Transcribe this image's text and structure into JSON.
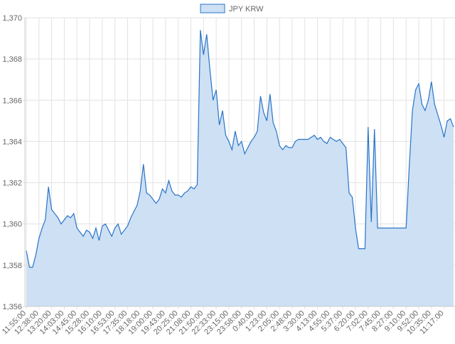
{
  "chart_data": {
    "type": "area",
    "series": [
      {
        "name": "JPY KRW",
        "color": "#2a74c9",
        "fill": "#cde0f4",
        "values": [
          1358.7,
          1357.9,
          1357.9,
          1358.5,
          1359.3,
          1359.8,
          1360.2,
          1361.8,
          1360.7,
          1360.5,
          1360.3,
          1360.0,
          1360.2,
          1360.4,
          1360.3,
          1360.5,
          1359.8,
          1359.6,
          1359.4,
          1359.7,
          1359.6,
          1359.3,
          1359.8,
          1359.2,
          1359.9,
          1360.0,
          1359.7,
          1359.4,
          1359.8,
          1360.0,
          1359.5,
          1359.7,
          1359.9,
          1360.3,
          1360.6,
          1360.9,
          1361.6,
          1362.9,
          1361.5,
          1361.4,
          1361.2,
          1361.0,
          1361.2,
          1361.7,
          1361.5,
          1362.1,
          1361.6,
          1361.4,
          1361.4,
          1361.3,
          1361.5,
          1361.6,
          1361.8,
          1361.7,
          1361.9,
          1369.4,
          1368.2,
          1369.2,
          1367.5,
          1366.0,
          1366.5,
          1364.8,
          1365.5,
          1364.3,
          1364.0,
          1363.6,
          1364.5,
          1363.8,
          1364.0,
          1363.4,
          1363.7,
          1364.0,
          1364.2,
          1364.5,
          1366.2,
          1365.4,
          1365.0,
          1366.3,
          1364.9,
          1364.5,
          1363.8,
          1363.6,
          1363.8,
          1363.7,
          1363.7,
          1364.0,
          1364.1,
          1364.1,
          1364.1,
          1364.1,
          1364.2,
          1364.3,
          1364.1,
          1364.2,
          1364.0,
          1363.9,
          1364.2,
          1364.1,
          1364.0,
          1364.1,
          1363.9,
          1363.7,
          1361.5,
          1361.3,
          1359.8,
          1358.8,
          1358.8,
          1358.8,
          1364.7,
          1360.1,
          1364.6,
          1359.8,
          1359.8,
          1359.8,
          1359.8,
          1359.8,
          1359.8,
          1359.8,
          1359.8,
          1359.8,
          1359.8,
          1362.8,
          1365.5,
          1366.5,
          1366.8,
          1365.8,
          1365.5,
          1366.0,
          1366.9,
          1365.8,
          1365.3,
          1364.8,
          1364.2,
          1365.0,
          1365.1,
          1364.7
        ]
      }
    ],
    "categories": [
      "11:55:00",
      null,
      null,
      null,
      "12:38:00",
      null,
      null,
      null,
      "13:20:00",
      null,
      null,
      null,
      "14:03:00",
      null,
      null,
      null,
      "14:45:00",
      null,
      null,
      null,
      "15:28:00",
      null,
      null,
      null,
      "16:10:00",
      null,
      null,
      null,
      "16:53:00",
      null,
      null,
      null,
      "17:35:00",
      null,
      null,
      null,
      "18:18:00",
      null,
      null,
      null,
      "19:00:00",
      null,
      null,
      null,
      "19:43:00",
      null,
      null,
      null,
      "20:25:00",
      null,
      null,
      null,
      "21:08:00",
      null,
      null,
      null,
      "21:50:00",
      null,
      null,
      null,
      "22:33:00",
      null,
      null,
      null,
      "23:15:00",
      null,
      null,
      null,
      "23:58:00",
      null,
      null,
      null,
      "0:40:00",
      null,
      null,
      null,
      "1:23:00",
      null,
      null,
      null,
      "2:05:00",
      null,
      null,
      null,
      "2:48:00",
      null,
      null,
      null,
      "3:30:00",
      null,
      null,
      null,
      "4:13:00",
      null,
      null,
      null,
      "4:55:00",
      null,
      null,
      null,
      "5:37:00",
      null,
      null,
      null,
      "6:20:00",
      null,
      null,
      null,
      "7:02:00",
      null,
      null,
      null,
      "7:45:00",
      null,
      null,
      null,
      "8:27:00",
      null,
      null,
      null,
      "9:10:00",
      null,
      null,
      null,
      "9:52:00",
      null,
      null,
      null,
      "10:35:00",
      null,
      null,
      null,
      "11:17:00",
      null,
      null,
      null
    ],
    "ylim": [
      1356,
      1370
    ],
    "yticks": [
      {
        "value": 1356,
        "label": "1,356"
      },
      {
        "value": 1358,
        "label": "1,358"
      },
      {
        "value": 1360,
        "label": "1,360"
      },
      {
        "value": 1362,
        "label": "1,362"
      },
      {
        "value": 1364,
        "label": "1,364"
      },
      {
        "value": 1366,
        "label": "1,366"
      },
      {
        "value": 1368,
        "label": "1,368"
      },
      {
        "value": 1370,
        "label": "1,370"
      }
    ],
    "grid": true,
    "legend": "top"
  }
}
